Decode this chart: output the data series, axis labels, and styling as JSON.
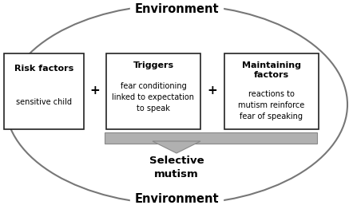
{
  "bg_color": "#ffffff",
  "ellipse_color": "#777777",
  "box_color": "#ffffff",
  "box_edge_color": "#222222",
  "arrow_fill_color": "#b0b0b0",
  "arrow_edge_color": "#888888",
  "text_color": "#000000",
  "environment_text": "Environment",
  "env_fontsize": 10.5,
  "box1_title": "Risk factors",
  "box1_body": "sensitive child",
  "box2_title": "Triggers",
  "box2_body": "fear conditioning\nlinked to expectation\nto speak",
  "box3_title": "Maintaining\nfactors",
  "box3_body": "reactions to\nmutism reinforce\nfear of speaking",
  "output_title": "Selective\nmutism",
  "plus_symbol": "+",
  "title_fontsize": 8,
  "body_fontsize": 7,
  "output_fontsize": 9.5,
  "plus_fontsize": 11
}
